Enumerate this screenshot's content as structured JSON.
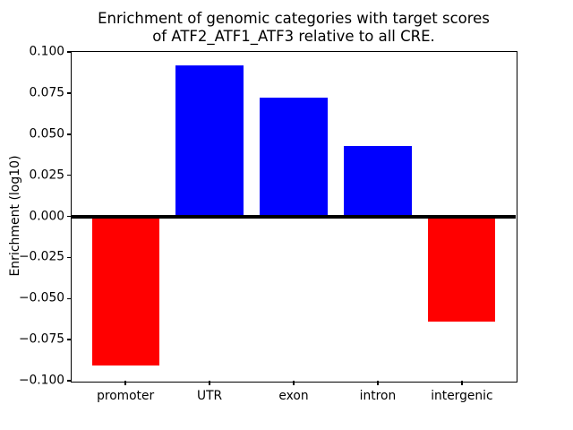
{
  "chart_data": {
    "type": "bar",
    "title_lines": [
      "Enrichment of genomic categories with target scores",
      "of ATF2_ATF1_ATF3 relative to all CRE."
    ],
    "ylabel": "Enrichment (log10)",
    "xlabel": "",
    "categories": [
      "promoter",
      "UTR",
      "exon",
      "intron",
      "intergenic"
    ],
    "values": [
      -0.091,
      0.092,
      0.072,
      0.043,
      -0.064
    ],
    "bar_colors": [
      "#ff0000",
      "#0000ff",
      "#0000ff",
      "#0000ff",
      "#ff0000"
    ],
    "positive_color": "#0000ff",
    "negative_color": "#ff0000",
    "axis_color": "#000000",
    "background_color": "#ffffff",
    "ylim": [
      -0.1,
      0.1
    ],
    "yticks": [
      0.1,
      0.075,
      0.05,
      0.025,
      0.0,
      -0.025,
      -0.05,
      -0.075,
      -0.1
    ],
    "ytick_labels": [
      "0.100",
      "0.075",
      "0.050",
      "0.025",
      "0.000",
      "−0.025",
      "−0.050",
      "−0.075",
      "−0.100"
    ],
    "grid": false,
    "legend": null,
    "zero_line": true
  }
}
